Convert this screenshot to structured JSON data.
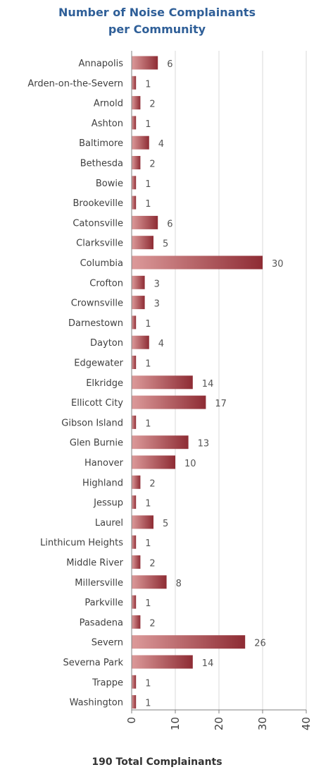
{
  "chart_data": {
    "type": "bar",
    "orientation": "horizontal",
    "title_line1": "Number of Noise Complainants",
    "title_line2": "per Community",
    "categories": [
      "Annapolis",
      "Arden-on-the-Severn",
      "Arnold",
      "Ashton",
      "Baltimore",
      "Bethesda",
      "Bowie",
      "Brookeville",
      "Catonsville",
      "Clarksville",
      "Columbia",
      "Crofton",
      "Crownsville",
      "Darnestown",
      "Dayton",
      "Edgewater",
      "Elkridge",
      "Ellicott City",
      "Gibson Island",
      "Glen Burnie",
      "Hanover",
      "Highland",
      "Jessup",
      "Laurel",
      "Linthicum Heights",
      "Middle River",
      "Millersville",
      "Parkville",
      "Pasadena",
      "Severn",
      "Severna Park",
      "Trappe",
      "Washington"
    ],
    "values": [
      6,
      1,
      2,
      1,
      4,
      2,
      1,
      1,
      6,
      5,
      30,
      3,
      3,
      1,
      4,
      1,
      14,
      17,
      1,
      13,
      10,
      2,
      1,
      5,
      1,
      2,
      8,
      1,
      2,
      26,
      14,
      1,
      1
    ],
    "xlim": [
      0,
      40
    ],
    "xticks": [
      "0",
      "10",
      "20",
      "30",
      "40"
    ],
    "grid": "vertical",
    "bar_color_light": "#dc9a9a",
    "bar_color_dark": "#8e2c34",
    "footer": "190 Total Complainants"
  }
}
